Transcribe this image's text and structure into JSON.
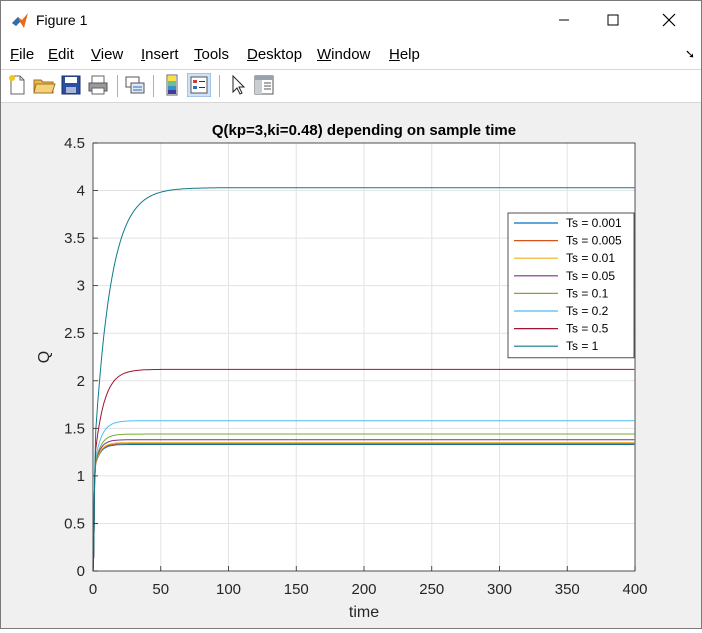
{
  "window": {
    "title": "Figure 1",
    "minimize_label": "—",
    "maximize_label": "☐",
    "close_label": "✕"
  },
  "menu": {
    "items": [
      {
        "label": "File",
        "key": "F",
        "rest": "ile"
      },
      {
        "label": "Edit",
        "key": "E",
        "rest": "dit"
      },
      {
        "label": "View",
        "key": "V",
        "rest": "iew"
      },
      {
        "label": "Insert",
        "key": "I",
        "rest": "nsert"
      },
      {
        "label": "Tools",
        "key": "T",
        "rest": "ools"
      },
      {
        "label": "Desktop",
        "key": "D",
        "rest": "esktop"
      },
      {
        "label": "Window",
        "key": "W",
        "rest": "indow"
      },
      {
        "label": "Help",
        "key": "H",
        "rest": "elp"
      }
    ]
  },
  "toolbar": {
    "icons": [
      "new-figure-icon",
      "open-file-icon",
      "save-icon",
      "print-icon",
      "link-plot-icon",
      "colorbar-icon",
      "legend-icon",
      "pointer-icon",
      "property-inspector-icon"
    ]
  },
  "chart_data": {
    "type": "line",
    "title": "Q(kp=3,ki=0.48) depending on sample time",
    "xlabel": "time",
    "ylabel": "Q",
    "xlim": [
      0,
      400
    ],
    "ylim": [
      0,
      4.5
    ],
    "xticks": [
      "0",
      "50",
      "100",
      "150",
      "200",
      "250",
      "300",
      "350",
      "400"
    ],
    "yticks": [
      "0",
      "0.5",
      "1",
      "1.5",
      "2",
      "2.5",
      "3",
      "3.5",
      "4",
      "4.5"
    ],
    "grid": true,
    "legend_position": "right",
    "series": [
      {
        "name": "Ts = 0.001",
        "color": "#0072bd",
        "final": 1.33,
        "tau": 4
      },
      {
        "name": "Ts = 0.005",
        "color": "#d95319",
        "final": 1.34,
        "tau": 4
      },
      {
        "name": "Ts = 0.01",
        "color": "#edb120",
        "final": 1.35,
        "tau": 4
      },
      {
        "name": "Ts = 0.05",
        "color": "#7e2f8e",
        "final": 1.38,
        "tau": 4
      },
      {
        "name": "Ts = 0.1",
        "color": "#77ac30",
        "final": 1.44,
        "tau": 4.5
      },
      {
        "name": "Ts = 0.2",
        "color": "#4dbeee",
        "final": 1.58,
        "tau": 5
      },
      {
        "name": "Ts = 0.5",
        "color": "#a2142f",
        "final": 2.12,
        "tau": 7
      },
      {
        "name": "Ts = 1",
        "color": "#0e7a8a",
        "final": 4.03,
        "tau": 12
      }
    ]
  }
}
